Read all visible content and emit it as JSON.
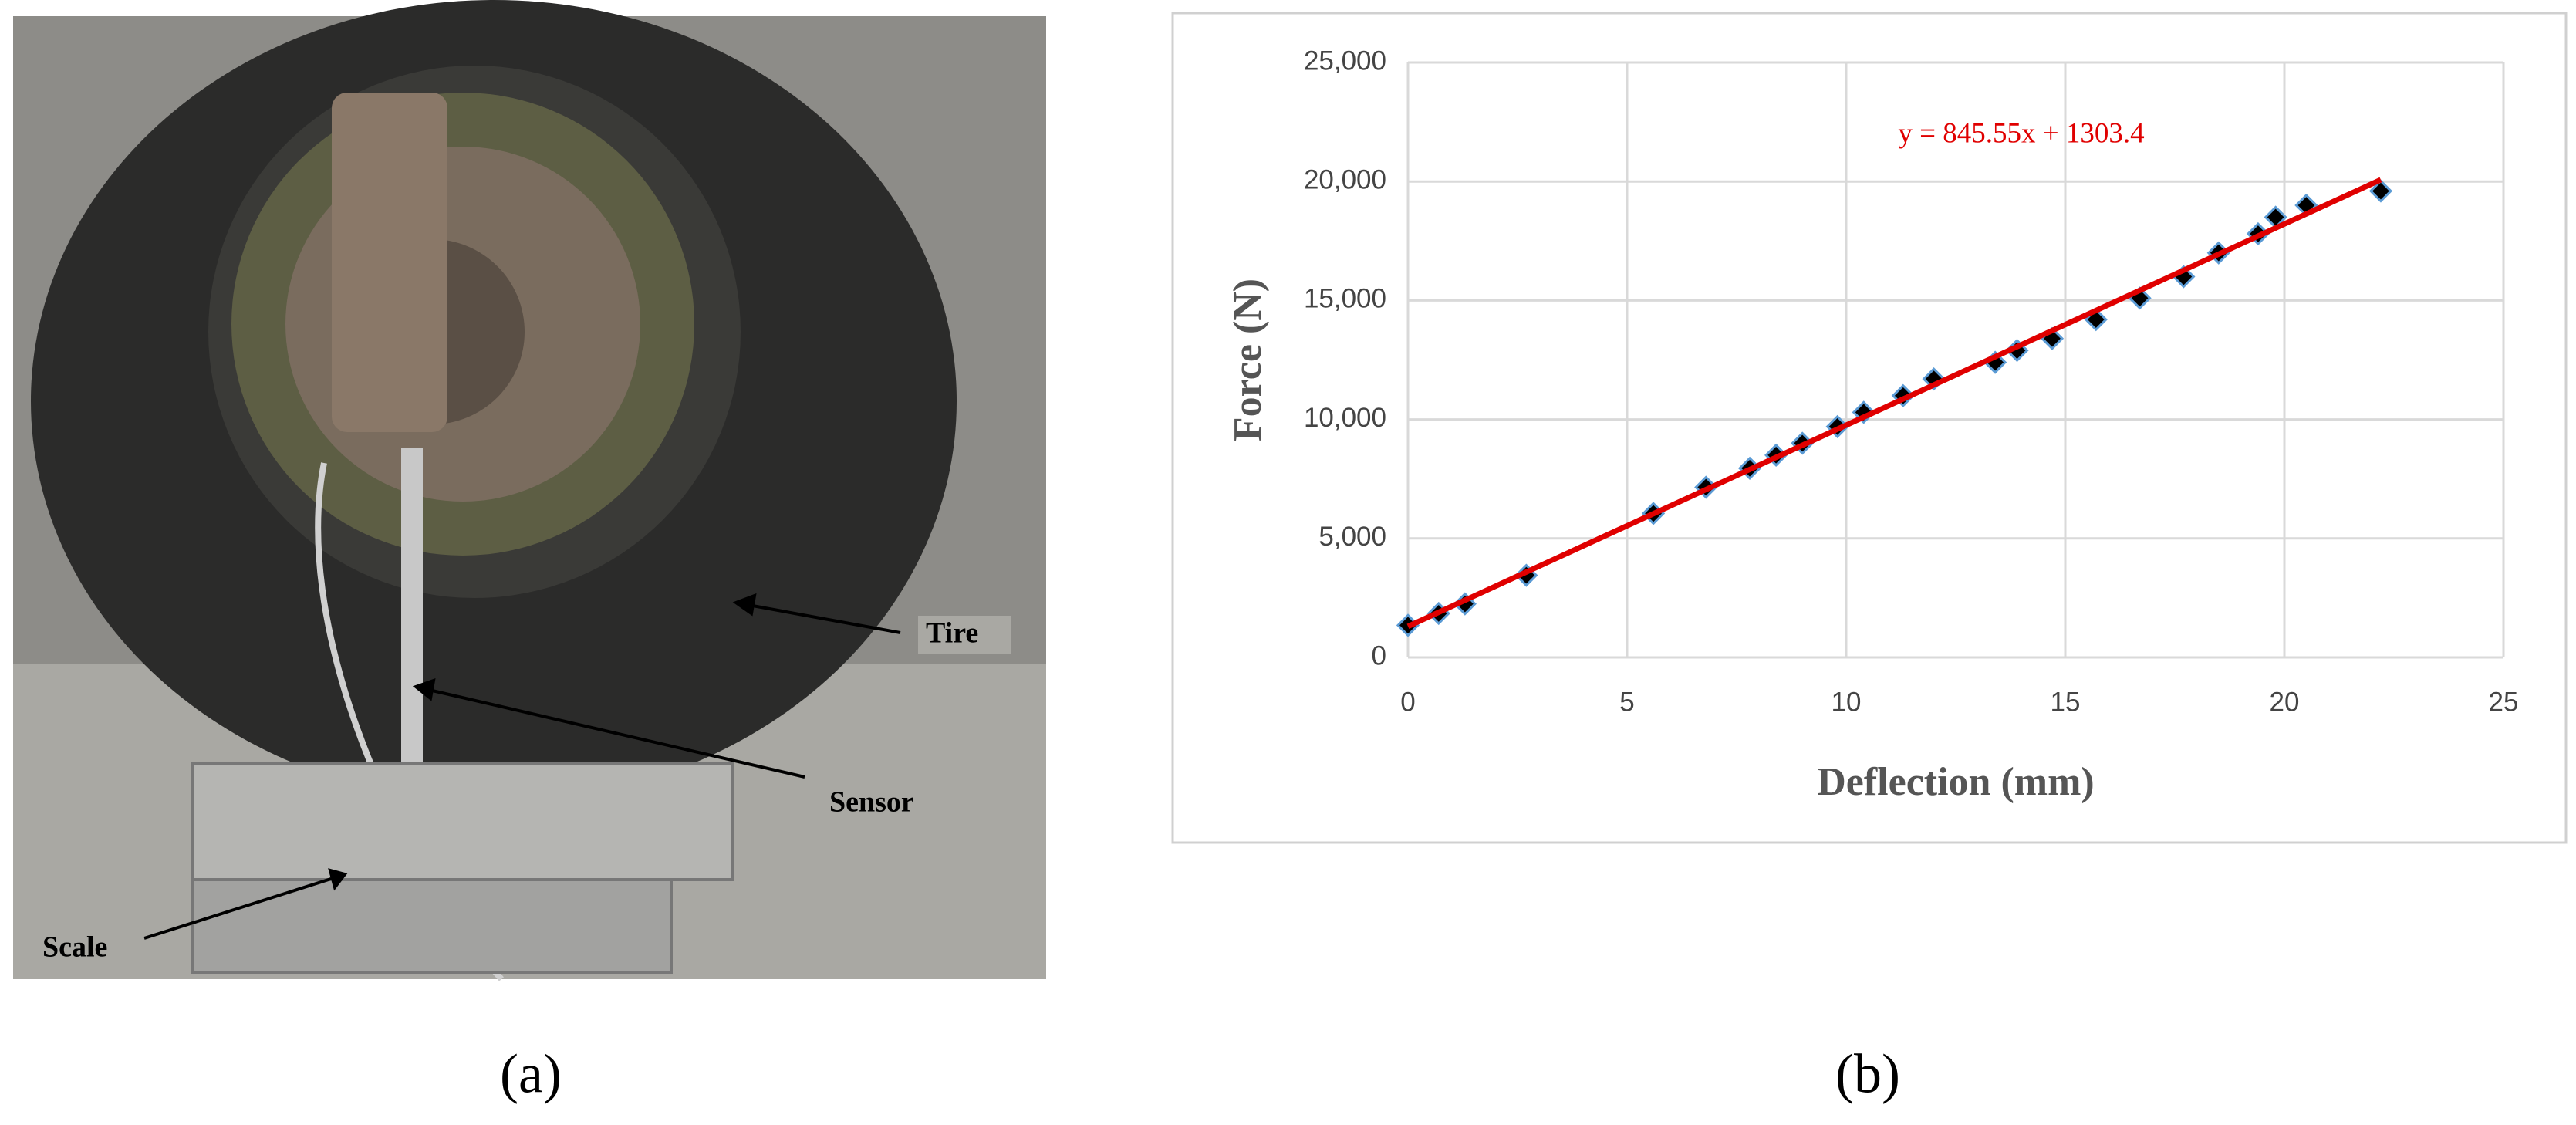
{
  "photo": {
    "labels": {
      "tire": "Tire",
      "sensor": "Sensor",
      "scale": "Scale"
    },
    "caption": "(a)"
  },
  "chart_data": {
    "type": "scatter",
    "caption": "(b)",
    "x_label": "Deflection (mm)",
    "y_label": "Force (N)",
    "x": [
      0,
      0.7,
      1.3,
      2.7,
      5.6,
      6.8,
      7.8,
      8.4,
      9,
      9.8,
      10.4,
      11.3,
      12,
      13.4,
      13.9,
      14.7,
      15.7,
      16.7,
      17.7,
      18.5,
      19.4,
      19.8,
      20.5,
      22.2
    ],
    "values": [
      1350,
      1850,
      2250,
      3450,
      6050,
      7150,
      7950,
      8500,
      9000,
      9700,
      10300,
      11000,
      11700,
      12400,
      12900,
      13400,
      14200,
      15100,
      16000,
      17000,
      17800,
      18500,
      19000,
      19600
    ],
    "color": "#000000",
    "edge_color": "#5b9bd5",
    "trendline": {
      "label": "y = 845.55x + 1303.4",
      "slope": 845.55,
      "intercept": 1303.4,
      "color": "#e00000"
    },
    "xlim": [
      0,
      25
    ],
    "xticks": [
      0,
      5,
      10,
      15,
      20,
      25
    ],
    "ylim": [
      0,
      25000
    ],
    "yticks": [
      0,
      {
        "value": 5000,
        "label": "5,000"
      },
      {
        "value": 10000,
        "label": "10,000"
      },
      {
        "value": 15000,
        "label": "15,000"
      },
      {
        "value": 20000,
        "label": "20,000"
      },
      {
        "value": 25000,
        "label": "25,000"
      }
    ],
    "grid": true
  }
}
